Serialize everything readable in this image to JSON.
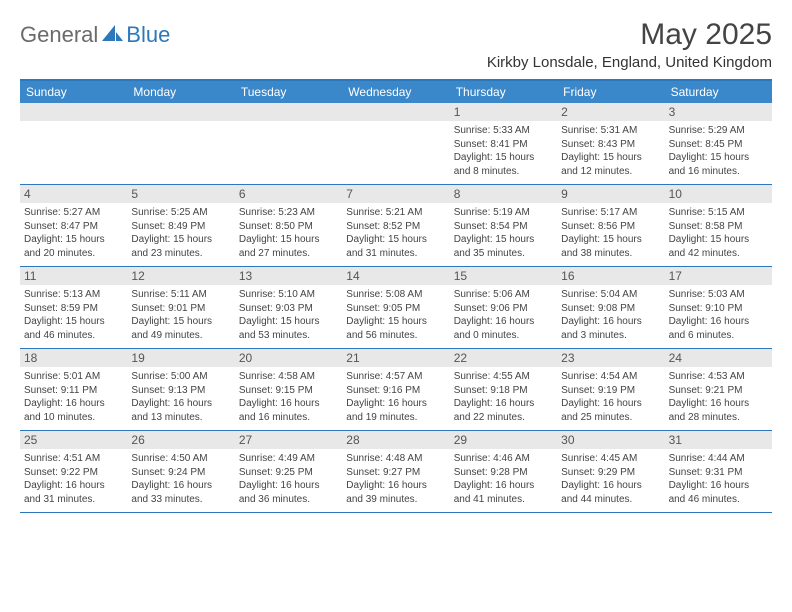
{
  "logo": {
    "general": "General",
    "blue": "Blue"
  },
  "colors": {
    "header_bg": "#3a87c9",
    "border": "#2d78bb",
    "date_bg": "#e8e8e8"
  },
  "title": "May 2025",
  "location": "Kirkby Lonsdale, England, United Kingdom",
  "day_names": [
    "Sunday",
    "Monday",
    "Tuesday",
    "Wednesday",
    "Thursday",
    "Friday",
    "Saturday"
  ],
  "weeks": [
    [
      null,
      null,
      null,
      null,
      {
        "n": "1",
        "sr": "Sunrise: 5:33 AM",
        "ss": "Sunset: 8:41 PM",
        "d1": "Daylight: 15 hours",
        "d2": "and 8 minutes."
      },
      {
        "n": "2",
        "sr": "Sunrise: 5:31 AM",
        "ss": "Sunset: 8:43 PM",
        "d1": "Daylight: 15 hours",
        "d2": "and 12 minutes."
      },
      {
        "n": "3",
        "sr": "Sunrise: 5:29 AM",
        "ss": "Sunset: 8:45 PM",
        "d1": "Daylight: 15 hours",
        "d2": "and 16 minutes."
      }
    ],
    [
      {
        "n": "4",
        "sr": "Sunrise: 5:27 AM",
        "ss": "Sunset: 8:47 PM",
        "d1": "Daylight: 15 hours",
        "d2": "and 20 minutes."
      },
      {
        "n": "5",
        "sr": "Sunrise: 5:25 AM",
        "ss": "Sunset: 8:49 PM",
        "d1": "Daylight: 15 hours",
        "d2": "and 23 minutes."
      },
      {
        "n": "6",
        "sr": "Sunrise: 5:23 AM",
        "ss": "Sunset: 8:50 PM",
        "d1": "Daylight: 15 hours",
        "d2": "and 27 minutes."
      },
      {
        "n": "7",
        "sr": "Sunrise: 5:21 AM",
        "ss": "Sunset: 8:52 PM",
        "d1": "Daylight: 15 hours",
        "d2": "and 31 minutes."
      },
      {
        "n": "8",
        "sr": "Sunrise: 5:19 AM",
        "ss": "Sunset: 8:54 PM",
        "d1": "Daylight: 15 hours",
        "d2": "and 35 minutes."
      },
      {
        "n": "9",
        "sr": "Sunrise: 5:17 AM",
        "ss": "Sunset: 8:56 PM",
        "d1": "Daylight: 15 hours",
        "d2": "and 38 minutes."
      },
      {
        "n": "10",
        "sr": "Sunrise: 5:15 AM",
        "ss": "Sunset: 8:58 PM",
        "d1": "Daylight: 15 hours",
        "d2": "and 42 minutes."
      }
    ],
    [
      {
        "n": "11",
        "sr": "Sunrise: 5:13 AM",
        "ss": "Sunset: 8:59 PM",
        "d1": "Daylight: 15 hours",
        "d2": "and 46 minutes."
      },
      {
        "n": "12",
        "sr": "Sunrise: 5:11 AM",
        "ss": "Sunset: 9:01 PM",
        "d1": "Daylight: 15 hours",
        "d2": "and 49 minutes."
      },
      {
        "n": "13",
        "sr": "Sunrise: 5:10 AM",
        "ss": "Sunset: 9:03 PM",
        "d1": "Daylight: 15 hours",
        "d2": "and 53 minutes."
      },
      {
        "n": "14",
        "sr": "Sunrise: 5:08 AM",
        "ss": "Sunset: 9:05 PM",
        "d1": "Daylight: 15 hours",
        "d2": "and 56 minutes."
      },
      {
        "n": "15",
        "sr": "Sunrise: 5:06 AM",
        "ss": "Sunset: 9:06 PM",
        "d1": "Daylight: 16 hours",
        "d2": "and 0 minutes."
      },
      {
        "n": "16",
        "sr": "Sunrise: 5:04 AM",
        "ss": "Sunset: 9:08 PM",
        "d1": "Daylight: 16 hours",
        "d2": "and 3 minutes."
      },
      {
        "n": "17",
        "sr": "Sunrise: 5:03 AM",
        "ss": "Sunset: 9:10 PM",
        "d1": "Daylight: 16 hours",
        "d2": "and 6 minutes."
      }
    ],
    [
      {
        "n": "18",
        "sr": "Sunrise: 5:01 AM",
        "ss": "Sunset: 9:11 PM",
        "d1": "Daylight: 16 hours",
        "d2": "and 10 minutes."
      },
      {
        "n": "19",
        "sr": "Sunrise: 5:00 AM",
        "ss": "Sunset: 9:13 PM",
        "d1": "Daylight: 16 hours",
        "d2": "and 13 minutes."
      },
      {
        "n": "20",
        "sr": "Sunrise: 4:58 AM",
        "ss": "Sunset: 9:15 PM",
        "d1": "Daylight: 16 hours",
        "d2": "and 16 minutes."
      },
      {
        "n": "21",
        "sr": "Sunrise: 4:57 AM",
        "ss": "Sunset: 9:16 PM",
        "d1": "Daylight: 16 hours",
        "d2": "and 19 minutes."
      },
      {
        "n": "22",
        "sr": "Sunrise: 4:55 AM",
        "ss": "Sunset: 9:18 PM",
        "d1": "Daylight: 16 hours",
        "d2": "and 22 minutes."
      },
      {
        "n": "23",
        "sr": "Sunrise: 4:54 AM",
        "ss": "Sunset: 9:19 PM",
        "d1": "Daylight: 16 hours",
        "d2": "and 25 minutes."
      },
      {
        "n": "24",
        "sr": "Sunrise: 4:53 AM",
        "ss": "Sunset: 9:21 PM",
        "d1": "Daylight: 16 hours",
        "d2": "and 28 minutes."
      }
    ],
    [
      {
        "n": "25",
        "sr": "Sunrise: 4:51 AM",
        "ss": "Sunset: 9:22 PM",
        "d1": "Daylight: 16 hours",
        "d2": "and 31 minutes."
      },
      {
        "n": "26",
        "sr": "Sunrise: 4:50 AM",
        "ss": "Sunset: 9:24 PM",
        "d1": "Daylight: 16 hours",
        "d2": "and 33 minutes."
      },
      {
        "n": "27",
        "sr": "Sunrise: 4:49 AM",
        "ss": "Sunset: 9:25 PM",
        "d1": "Daylight: 16 hours",
        "d2": "and 36 minutes."
      },
      {
        "n": "28",
        "sr": "Sunrise: 4:48 AM",
        "ss": "Sunset: 9:27 PM",
        "d1": "Daylight: 16 hours",
        "d2": "and 39 minutes."
      },
      {
        "n": "29",
        "sr": "Sunrise: 4:46 AM",
        "ss": "Sunset: 9:28 PM",
        "d1": "Daylight: 16 hours",
        "d2": "and 41 minutes."
      },
      {
        "n": "30",
        "sr": "Sunrise: 4:45 AM",
        "ss": "Sunset: 9:29 PM",
        "d1": "Daylight: 16 hours",
        "d2": "and 44 minutes."
      },
      {
        "n": "31",
        "sr": "Sunrise: 4:44 AM",
        "ss": "Sunset: 9:31 PM",
        "d1": "Daylight: 16 hours",
        "d2": "and 46 minutes."
      }
    ]
  ]
}
